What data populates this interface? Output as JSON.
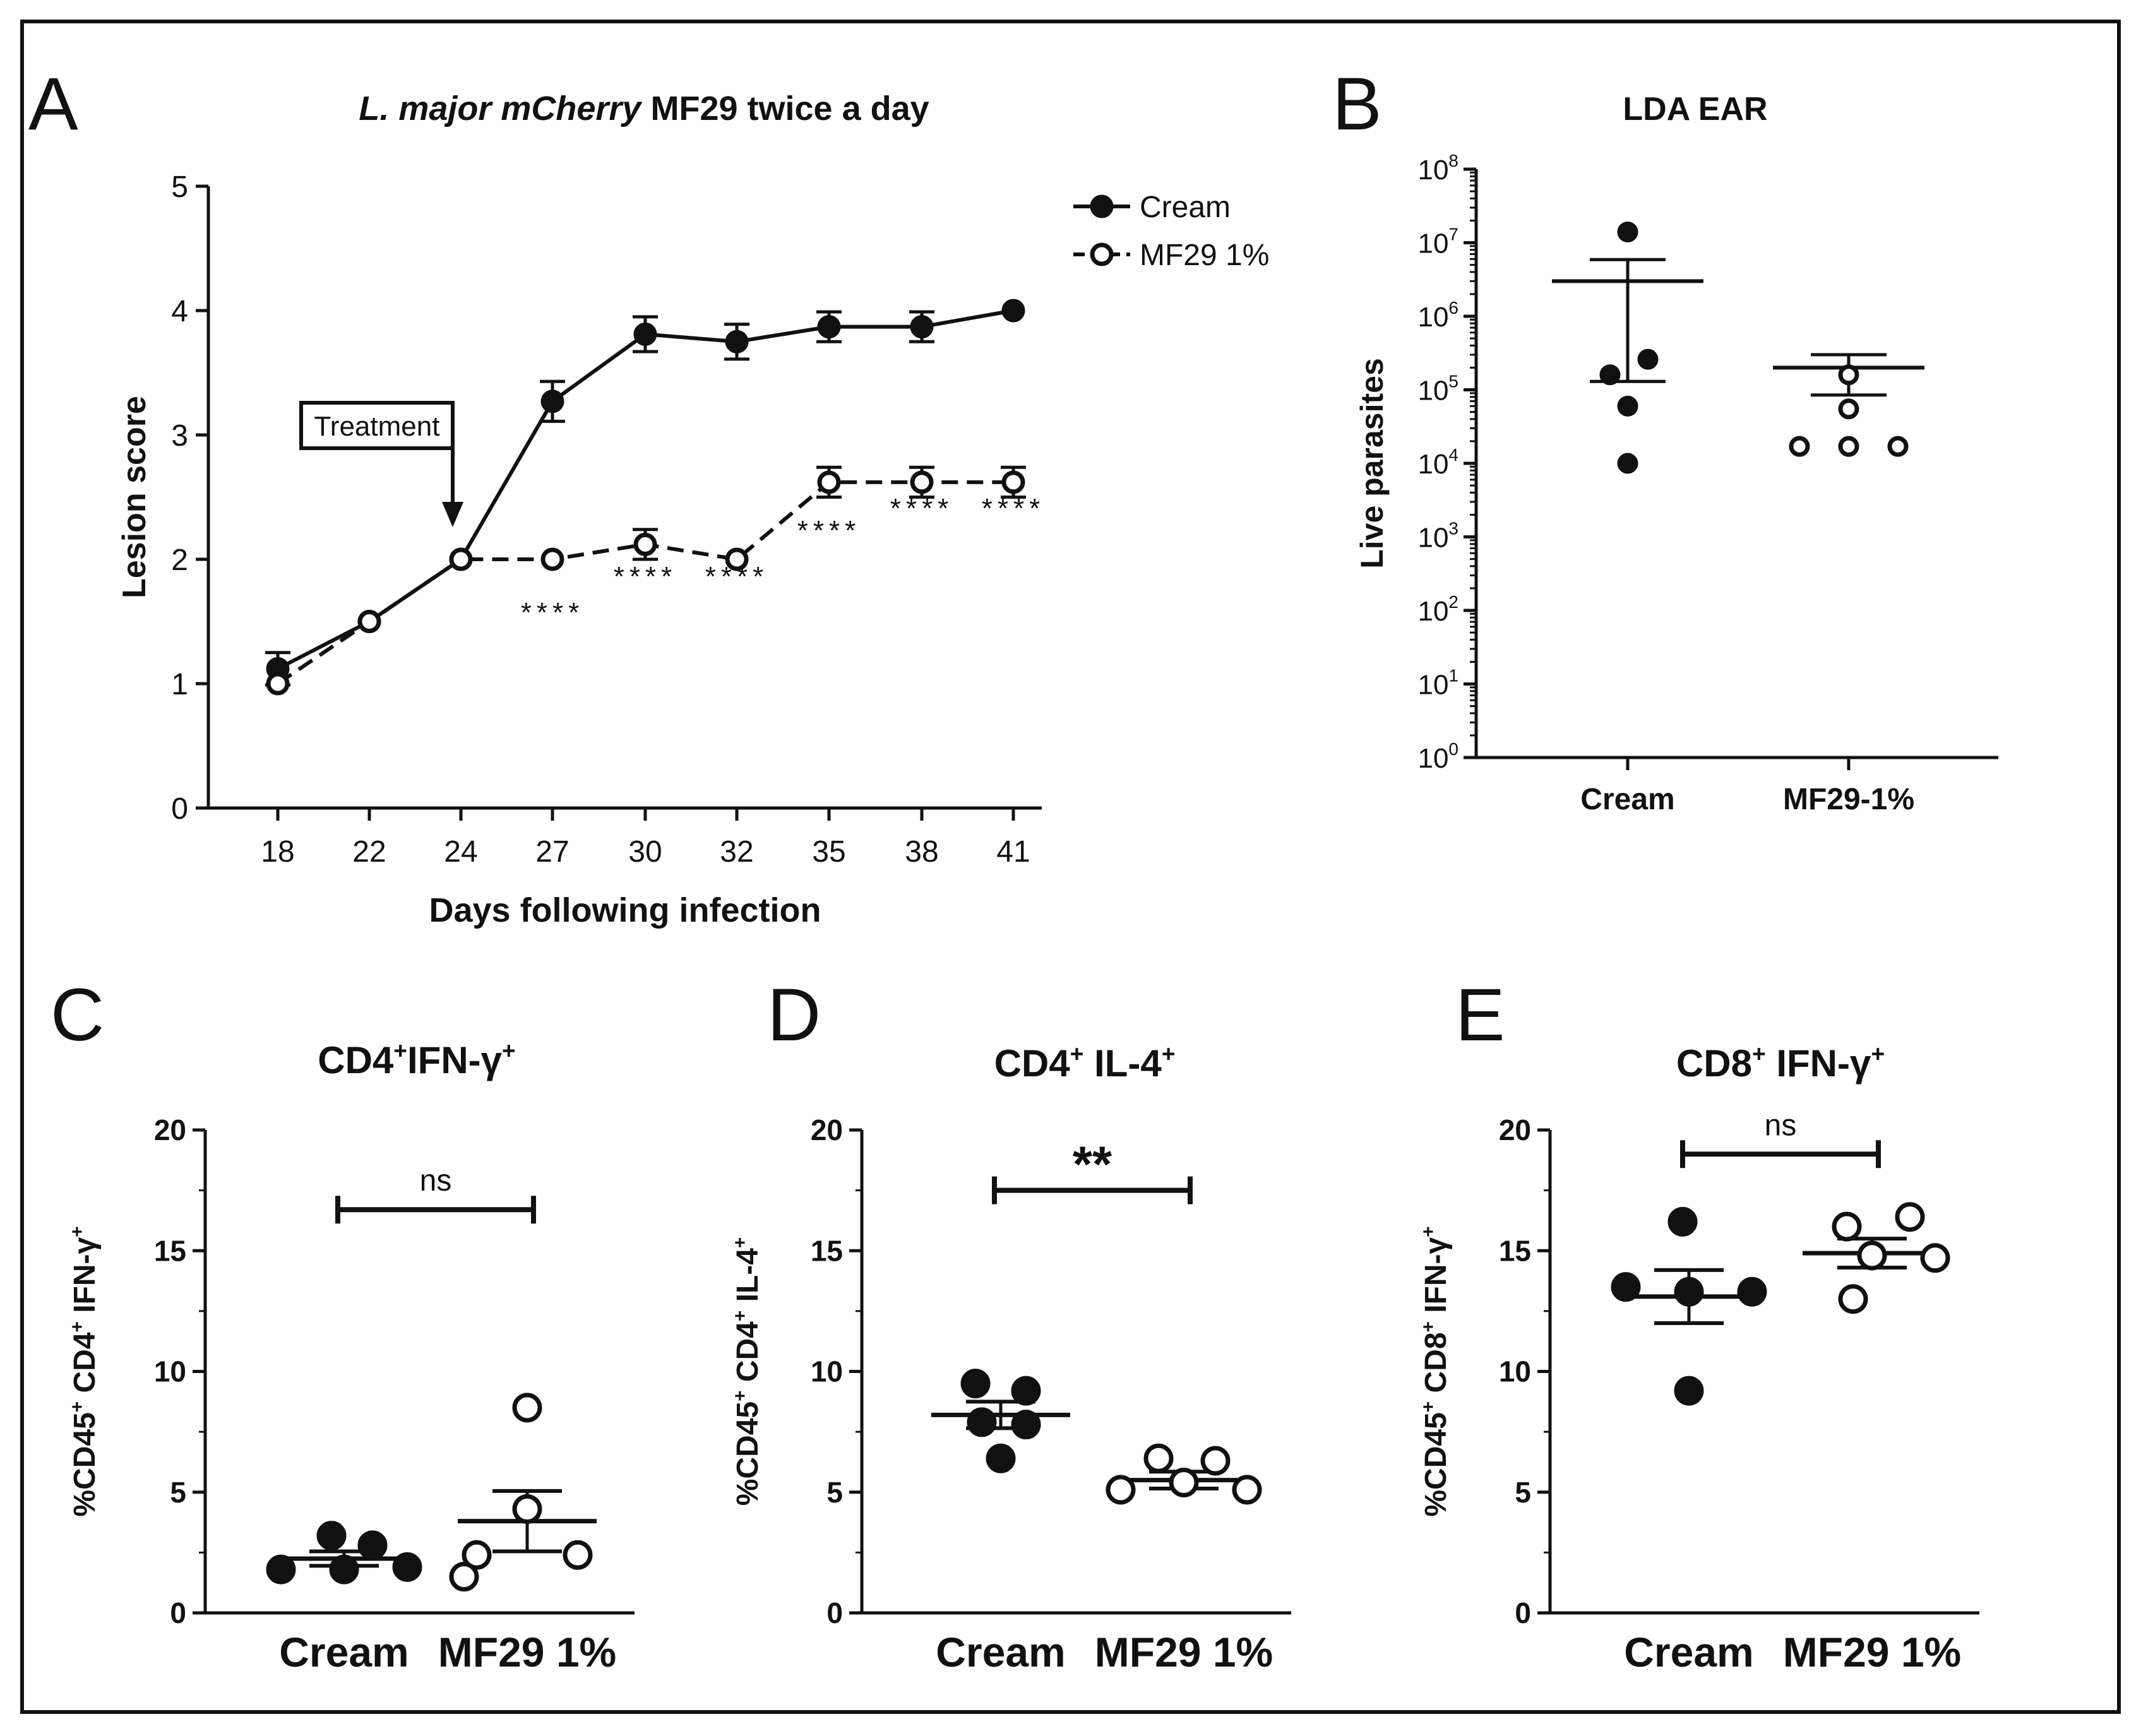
{
  "chart_data": [
    {
      "panel": "A",
      "type": "line",
      "title_italic": "L. major mCherry",
      "title_rest": " MF29 twice a day",
      "xlabel": "Days following infection",
      "ylabel": "Lesion score",
      "x": [
        18,
        22,
        24,
        27,
        30,
        32,
        35,
        38,
        41
      ],
      "xticks": [
        "18",
        "22",
        "24",
        "27",
        "30",
        "32",
        "35",
        "38",
        "41"
      ],
      "yticks": [
        "0",
        "1",
        "2",
        "3",
        "4",
        "5"
      ],
      "ylim": [
        0,
        5
      ],
      "series": [
        {
          "name": "Cream",
          "marker": "filled",
          "line": "solid",
          "values": [
            1.12,
            1.5,
            2.0,
            3.27,
            3.81,
            3.75,
            3.87,
            3.87,
            4.0
          ],
          "errors": [
            0.13,
            0,
            0,
            0.16,
            0.14,
            0.14,
            0.12,
            0.12,
            0
          ]
        },
        {
          "name": "MF29 1%",
          "marker": "open",
          "line": "dashed",
          "values": [
            1.0,
            1.5,
            2.0,
            2.0,
            2.12,
            2.0,
            2.62,
            2.62,
            2.62
          ],
          "errors": [
            0,
            0,
            0,
            0,
            0.12,
            0,
            0.12,
            0.12,
            0.12
          ]
        }
      ],
      "annotations": [
        {
          "text": "****",
          "x": 27
        },
        {
          "text": "****",
          "x": 30
        },
        {
          "text": "****",
          "x": 32
        },
        {
          "text": "****",
          "x": 35
        },
        {
          "text": "****",
          "x": 38
        },
        {
          "text": "****",
          "x": 41
        }
      ],
      "callout": {
        "text": "Treatment",
        "x": 24
      },
      "legend": "top-right"
    },
    {
      "panel": "B",
      "type": "scatter",
      "title": "LDA EAR",
      "ylabel": "Live parasites",
      "yscale": "log",
      "ylim": [
        1,
        100000000
      ],
      "ytick_base": "10",
      "ytick_exponents": [
        "0",
        "1",
        "2",
        "3",
        "4",
        "5",
        "6",
        "7",
        "8"
      ],
      "categories": [
        "Cream",
        "MF29-1%"
      ],
      "series": [
        {
          "name": "Cream",
          "marker": "filled",
          "values": [
            14000000,
            260000,
            160000,
            60000,
            10000
          ],
          "mean": 3000000,
          "sem_upper": 5900000,
          "sem_lower": 130000
        },
        {
          "name": "MF29-1%",
          "marker": "open",
          "values": [
            160000,
            55000,
            17000,
            17000,
            17000
          ],
          "mean": 200000,
          "sem_upper": 300000,
          "sem_lower": 85000
        }
      ]
    },
    {
      "panel": "C",
      "type": "scatter",
      "title": "CD4+IFN-γ+",
      "ylabel": "%CD45+ CD4+ IFN-γ+",
      "ylim": [
        0,
        20
      ],
      "yticks": [
        "0",
        "5",
        "10",
        "15",
        "20"
      ],
      "categories": [
        "Cream",
        "MF29 1%"
      ],
      "series": [
        {
          "name": "Cream",
          "marker": "filled",
          "values": [
            3.2,
            2.8,
            1.8,
            1.9,
            1.8
          ],
          "mean": 2.25,
          "sem": 0.3
        },
        {
          "name": "MF29 1%",
          "marker": "open",
          "values": [
            8.5,
            4.3,
            2.4,
            2.4,
            1.5
          ],
          "mean": 3.8,
          "sem": 1.25
        }
      ],
      "significance": "ns",
      "bracket_y": 16.7
    },
    {
      "panel": "D",
      "type": "scatter",
      "title": "CD4+ IL-4+",
      "ylabel": "%CD45+ CD4+ IL-4+",
      "ylim": [
        0,
        20
      ],
      "yticks": [
        "0",
        "5",
        "10",
        "15",
        "20"
      ],
      "categories": [
        "Cream",
        "MF29 1%"
      ],
      "series": [
        {
          "name": "Cream",
          "marker": "filled",
          "values": [
            9.5,
            9.2,
            7.9,
            7.8,
            6.4
          ],
          "mean": 8.2,
          "sem": 0.55
        },
        {
          "name": "MF29 1%",
          "marker": "open",
          "values": [
            6.4,
            6.3,
            5.4,
            5.1,
            5.1
          ],
          "mean": 5.5,
          "sem": 0.35
        }
      ],
      "significance": "**",
      "bracket_y": 17.5
    },
    {
      "panel": "E",
      "type": "scatter",
      "title": "CD8+ IFN-γ+",
      "ylabel": "%CD45+ CD8+ IFN-γ+",
      "ylim": [
        0,
        20
      ],
      "yticks": [
        "0",
        "5",
        "10",
        "15",
        "20"
      ],
      "categories": [
        "Cream",
        "MF29 1%"
      ],
      "series": [
        {
          "name": "Cream",
          "marker": "filled",
          "values": [
            16.2,
            13.5,
            13.3,
            13.3,
            9.2
          ],
          "mean": 13.1,
          "sem": 1.1
        },
        {
          "name": "MF29 1%",
          "marker": "open",
          "values": [
            16.0,
            16.4,
            14.8,
            14.7,
            13.0
          ],
          "mean": 14.9,
          "sem": 0.6
        }
      ],
      "significance": "ns",
      "bracket_y": 19.0
    }
  ],
  "panel_letters": [
    "A",
    "B",
    "C",
    "D",
    "E"
  ]
}
